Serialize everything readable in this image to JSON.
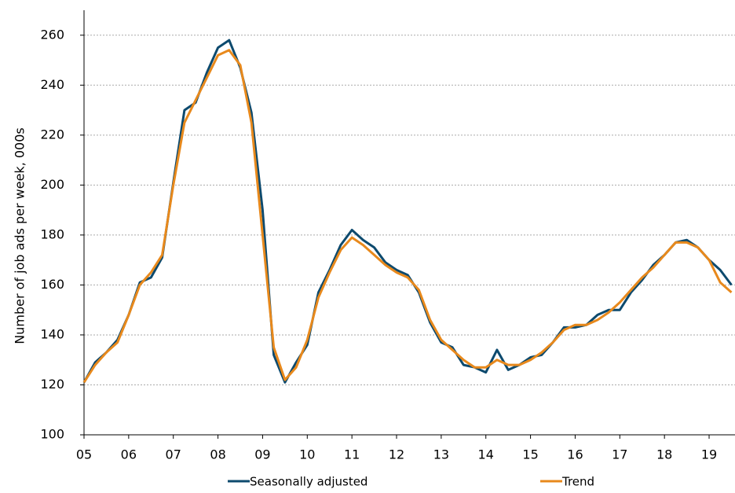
{
  "chart_data": {
    "type": "line",
    "y_label": "Number of job ads per week, 000s",
    "x": [
      2005,
      2005.25,
      2005.5,
      2005.75,
      2006,
      2006.25,
      2006.5,
      2006.75,
      2007,
      2007.25,
      2007.5,
      2007.75,
      2008,
      2008.25,
      2008.5,
      2008.75,
      2009,
      2009.25,
      2009.5,
      2009.75,
      2010,
      2010.25,
      2010.5,
      2010.75,
      2011,
      2011.25,
      2011.5,
      2011.75,
      2012,
      2012.25,
      2012.5,
      2012.75,
      2013,
      2013.25,
      2013.5,
      2013.75,
      2014,
      2014.25,
      2014.5,
      2014.75,
      2015,
      2015.25,
      2015.5,
      2015.75,
      2016,
      2016.25,
      2016.5,
      2016.75,
      2017,
      2017.25,
      2017.5,
      2017.75,
      2018,
      2018.25,
      2018.5,
      2018.75,
      2019,
      2019.25,
      2019.5
    ],
    "series": [
      {
        "name": "Seasonally adjusted",
        "color": "#0d4a6e",
        "values": [
          121,
          129,
          133,
          138,
          148,
          161,
          163,
          171,
          201,
          230,
          233,
          245,
          255,
          258,
          247,
          229,
          190,
          132,
          121,
          129,
          136,
          157,
          166,
          176,
          182,
          178,
          175,
          169,
          166,
          164,
          157,
          145,
          137,
          135,
          128,
          127,
          125,
          134,
          126,
          128,
          131,
          132,
          137,
          143,
          143,
          144,
          148,
          150,
          150,
          157,
          162,
          168,
          172,
          177,
          178,
          175,
          170,
          166,
          160
        ]
      },
      {
        "name": "Trend",
        "color": "#e8891c",
        "values": [
          121,
          128,
          133,
          137,
          148,
          160,
          165,
          172,
          200,
          225,
          234,
          243,
          252,
          254,
          248,
          225,
          180,
          135,
          122,
          127,
          138,
          155,
          165,
          174,
          179,
          176,
          172,
          168,
          165,
          163,
          158,
          146,
          138,
          134,
          130,
          127,
          127,
          130,
          128,
          128,
          130,
          133,
          137,
          142,
          144,
          144,
          146,
          149,
          153,
          158,
          163,
          167,
          172,
          177,
          177,
          175,
          170,
          161,
          157
        ]
      }
    ],
    "xlim": [
      2005,
      2019.58
    ],
    "xticks": [
      {
        "value": 2005,
        "label": "05"
      },
      {
        "value": 2006,
        "label": "06"
      },
      {
        "value": 2007,
        "label": "07"
      },
      {
        "value": 2008,
        "label": "08"
      },
      {
        "value": 2009,
        "label": "09"
      },
      {
        "value": 2010,
        "label": "10"
      },
      {
        "value": 2011,
        "label": "11"
      },
      {
        "value": 2012,
        "label": "12"
      },
      {
        "value": 2013,
        "label": "13"
      },
      {
        "value": 2014,
        "label": "14"
      },
      {
        "value": 2015,
        "label": "15"
      },
      {
        "value": 2016,
        "label": "16"
      },
      {
        "value": 2017,
        "label": "17"
      },
      {
        "value": 2018,
        "label": "18"
      },
      {
        "value": 2019,
        "label": "19"
      }
    ],
    "ylim": [
      100,
      270
    ],
    "yticks": [
      100,
      120,
      140,
      160,
      180,
      200,
      220,
      240,
      260
    ],
    "grid": true
  }
}
